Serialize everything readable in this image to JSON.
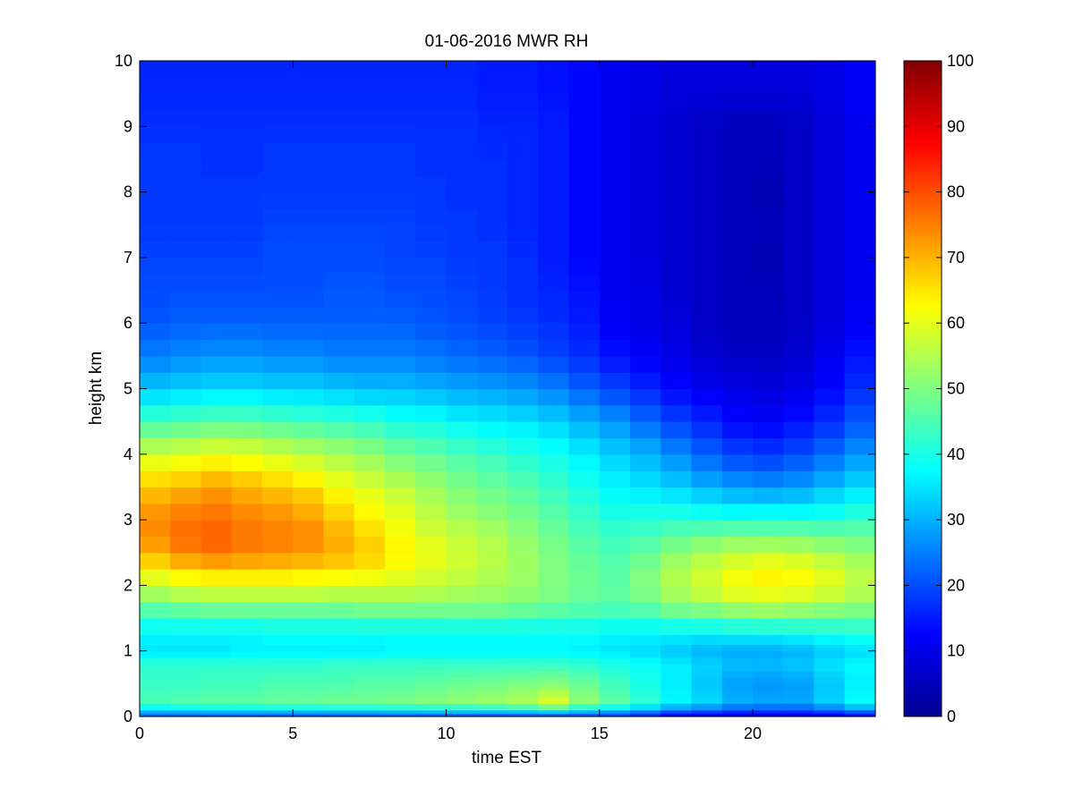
{
  "chart_data": {
    "type": "heatmap",
    "title": "01-06-2016 MWR RH",
    "xlabel": "time EST",
    "ylabel": "height km",
    "xlim": [
      0,
      24
    ],
    "ylim": [
      0,
      10
    ],
    "xticks": [
      0,
      5,
      10,
      15,
      20
    ],
    "xtick_labels": [
      "0",
      "5",
      "10",
      "15",
      "20"
    ],
    "yticks": [
      0,
      1,
      2,
      3,
      4,
      5,
      6,
      7,
      8,
      9,
      10
    ],
    "ytick_labels": [
      "0",
      "1",
      "2",
      "3",
      "4",
      "5",
      "6",
      "7",
      "8",
      "9",
      "10"
    ],
    "colormap": "jet",
    "color_range": [
      0,
      100
    ],
    "colorbar_ticks": [
      0,
      10,
      20,
      30,
      40,
      50,
      60,
      70,
      80,
      90,
      100
    ],
    "colorbar_labels": [
      "0",
      "10",
      "20",
      "30",
      "40",
      "50",
      "60",
      "70",
      "80",
      "90",
      "100"
    ],
    "grid": false,
    "times": [
      0,
      1,
      2,
      3,
      4,
      5,
      6,
      7,
      8,
      9,
      10,
      11,
      12,
      13,
      14,
      15,
      16,
      17,
      18,
      19,
      20,
      21,
      22,
      23
    ],
    "time_step": 1,
    "height_levels": [
      0,
      0.05,
      0.1,
      0.2,
      0.3,
      0.4,
      0.5,
      0.6,
      0.7,
      0.8,
      0.9,
      1.0,
      1.1,
      1.25,
      1.5,
      1.75,
      2.0,
      2.25,
      2.5,
      2.75,
      3.0,
      3.25,
      3.5,
      3.75,
      4.0,
      4.25,
      4.5,
      4.75,
      5.0,
      5.25,
      5.5,
      5.75,
      6.0,
      6.25,
      6.5,
      6.75,
      7.0,
      7.25,
      7.5,
      7.75,
      8.0,
      8.25,
      8.5,
      8.75,
      9.0,
      9.25,
      9.5,
      9.75
    ],
    "profile_heights": [
      0.03,
      0.2,
      0.5,
      0.8,
      1.0,
      1.3,
      1.6,
      1.9,
      2.2,
      2.5,
      2.8,
      3.1,
      3.5,
      4.0,
      4.5,
      5.0,
      5.5,
      6.0,
      6.5,
      7.0,
      7.5,
      8.0,
      8.5,
      9.0,
      9.6
    ],
    "profiles": [
      [
        24,
        45,
        43,
        42,
        35,
        37,
        45,
        54,
        62,
        71,
        74,
        73,
        68,
        58,
        44,
        32,
        25,
        21,
        20,
        19,
        18,
        18,
        18,
        17,
        16
      ],
      [
        24,
        46,
        43,
        42,
        35,
        37,
        46,
        56,
        65,
        75,
        77,
        75,
        70,
        59,
        45,
        33,
        26,
        22,
        20,
        19,
        18,
        18,
        18,
        17,
        16
      ],
      [
        24,
        47,
        44,
        42,
        35,
        37,
        47,
        57,
        66,
        77,
        78,
        76,
        72,
        61,
        46,
        34,
        27,
        22,
        20,
        19,
        18,
        18,
        17,
        17,
        16
      ],
      [
        24,
        47,
        44,
        42,
        36,
        37,
        47,
        57,
        66,
        75,
        76,
        74,
        70,
        60,
        46,
        34,
        27,
        22,
        20,
        19,
        18,
        18,
        17,
        17,
        16
      ],
      [
        24,
        48,
        45,
        42,
        36,
        38,
        47,
        57,
        66,
        74,
        75,
        73,
        68,
        58,
        45,
        33,
        26,
        22,
        20,
        20,
        19,
        18,
        18,
        17,
        16
      ],
      [
        24,
        48,
        45,
        42,
        36,
        38,
        47,
        57,
        65,
        73,
        74,
        71,
        66,
        56,
        44,
        33,
        26,
        22,
        20,
        20,
        19,
        18,
        18,
        17,
        16
      ],
      [
        24,
        49,
        45,
        43,
        36,
        38,
        47,
        56,
        64,
        71,
        70,
        67,
        62,
        54,
        43,
        32,
        25,
        22,
        21,
        20,
        19,
        18,
        18,
        17,
        16
      ],
      [
        24,
        49,
        46,
        43,
        36,
        38,
        48,
        56,
        63,
        68,
        66,
        63,
        59,
        52,
        42,
        31,
        25,
        22,
        21,
        20,
        19,
        18,
        18,
        17,
        16
      ],
      [
        24,
        50,
        46,
        43,
        37,
        38,
        48,
        56,
        61,
        64,
        62,
        60,
        56,
        49,
        40,
        31,
        25,
        22,
        20,
        19,
        19,
        18,
        18,
        17,
        16
      ],
      [
        24,
        51,
        47,
        43,
        37,
        38,
        48,
        55,
        59,
        61,
        58,
        56,
        53,
        47,
        39,
        30,
        24,
        21,
        20,
        19,
        18,
        18,
        17,
        17,
        16
      ],
      [
        23,
        52,
        48,
        43,
        37,
        38,
        48,
        54,
        57,
        58,
        56,
        53,
        50,
        45,
        37,
        29,
        23,
        20,
        19,
        18,
        18,
        17,
        17,
        17,
        16
      ],
      [
        23,
        53,
        49,
        43,
        37,
        38,
        48,
        53,
        55,
        56,
        54,
        51,
        48,
        43,
        36,
        28,
        22,
        19,
        18,
        18,
        17,
        17,
        17,
        16,
        15
      ],
      [
        23,
        55,
        50,
        43,
        37,
        38,
        47,
        52,
        53,
        53,
        51,
        49,
        46,
        41,
        35,
        27,
        21,
        18,
        17,
        17,
        16,
        16,
        16,
        16,
        15
      ],
      [
        23,
        60,
        51,
        43,
        37,
        38,
        46,
        50,
        50,
        50,
        48,
        46,
        43,
        39,
        33,
        25,
        19,
        17,
        16,
        15,
        15,
        15,
        15,
        15,
        14
      ],
      [
        22,
        52,
        48,
        42,
        36,
        38,
        45,
        48,
        48,
        47,
        45,
        43,
        40,
        36,
        30,
        22,
        17,
        15,
        14,
        13,
        13,
        13,
        13,
        13,
        13
      ],
      [
        21,
        47,
        44,
        40,
        35,
        37,
        44,
        47,
        46,
        45,
        43,
        40,
        37,
        33,
        27,
        19,
        14,
        12,
        11,
        11,
        11,
        11,
        11,
        11,
        11
      ],
      [
        18,
        42,
        40,
        38,
        34,
        37,
        45,
        50,
        50,
        47,
        44,
        40,
        35,
        30,
        23,
        16,
        12,
        10,
        10,
        9,
        9,
        9,
        9,
        9,
        10
      ],
      [
        14,
        37,
        36,
        36,
        32,
        37,
        48,
        54,
        55,
        51,
        46,
        40,
        33,
        26,
        19,
        13,
        10,
        9,
        8,
        8,
        8,
        8,
        8,
        8,
        9
      ],
      [
        13,
        34,
        32,
        33,
        30,
        37,
        49,
        57,
        58,
        54,
        47,
        39,
        30,
        22,
        16,
        11,
        8,
        7,
        7,
        7,
        7,
        7,
        7,
        7,
        9
      ],
      [
        12,
        30,
        28,
        31,
        29,
        38,
        51,
        60,
        62,
        56,
        48,
        38,
        28,
        19,
        13,
        10,
        7,
        6,
        6,
        6,
        6,
        6,
        6,
        6,
        9
      ],
      [
        12,
        29,
        27,
        31,
        29,
        38,
        52,
        61,
        64,
        57,
        48,
        38,
        27,
        18,
        12,
        9,
        7,
        6,
        6,
        5,
        6,
        5,
        6,
        6,
        9
      ],
      [
        12,
        29,
        28,
        32,
        30,
        39,
        51,
        60,
        63,
        56,
        48,
        38,
        28,
        20,
        14,
        10,
        8,
        7,
        7,
        7,
        7,
        7,
        7,
        7,
        9
      ],
      [
        13,
        33,
        32,
        35,
        32,
        40,
        50,
        58,
        60,
        54,
        47,
        39,
        31,
        23,
        17,
        13,
        11,
        9,
        9,
        9,
        9,
        9,
        9,
        9,
        10
      ],
      [
        15,
        38,
        36,
        37,
        34,
        41,
        49,
        55,
        56,
        52,
        47,
        41,
        34,
        27,
        21,
        17,
        14,
        12,
        11,
        11,
        11,
        11,
        11,
        11,
        12
      ]
    ]
  }
}
